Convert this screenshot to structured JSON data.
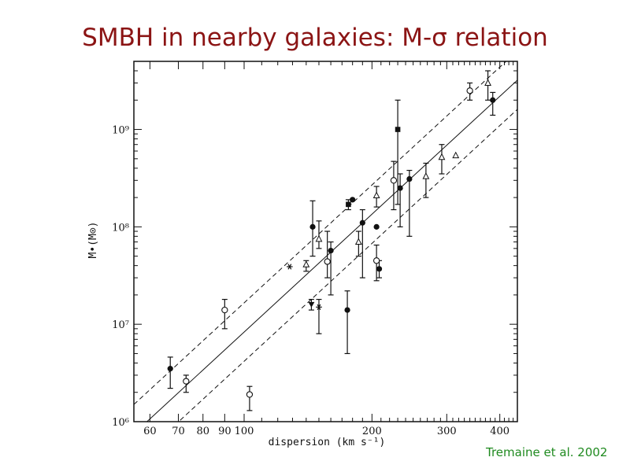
{
  "slide": {
    "title": "SMBH  in nearby galaxies: M-σ relation",
    "citation": "Tremaine et al. 2002"
  },
  "chart_data": {
    "type": "scatter",
    "x_scale": "log",
    "y_scale": "log",
    "xlabel": "dispersion (km s⁻¹)",
    "ylabel": "M•(M⊙)",
    "xlim": [
      55,
      440
    ],
    "ylim": [
      1000000,
      5000000000
    ],
    "x_ticks": [
      60,
      70,
      80,
      90,
      100,
      200,
      300,
      400
    ],
    "x_tick_labels": [
      "60",
      "70",
      "80",
      "90",
      "100",
      "200",
      "300",
      "400"
    ],
    "y_ticks": [
      1000000,
      10000000,
      100000000,
      1000000000
    ],
    "y_tick_labels": [
      "10⁶",
      "10⁷",
      "10⁸",
      "10⁹"
    ],
    "fit": {
      "slope": 4.02,
      "log_norm_at_200": 8.13
    },
    "confidence_offset_dex": 0.3,
    "grid": false,
    "legend": "none",
    "series": [
      {
        "marker": "filled-circle",
        "points": [
          {
            "x": 67,
            "y": 3500000,
            "y_lo": 2200000,
            "y_hi": 4600000
          },
          {
            "x": 145,
            "y": 100000000,
            "y_lo": 50000000,
            "y_hi": 185000000
          },
          {
            "x": 160,
            "y": 57000000,
            "y_lo": 20000000,
            "y_hi": 70000000
          },
          {
            "x": 175,
            "y": 14000000,
            "y_lo": 5000000,
            "y_hi": 22000000
          },
          {
            "x": 180,
            "y": 190000000
          },
          {
            "x": 190,
            "y": 110000000,
            "y_lo": 30000000,
            "y_hi": 150000000
          },
          {
            "x": 205,
            "y": 100000000
          },
          {
            "x": 208,
            "y": 37000000,
            "y_lo": 30000000,
            "y_hi": 45000000
          },
          {
            "x": 233,
            "y": 250000000,
            "y_lo": 100000000,
            "y_hi": 350000000
          },
          {
            "x": 245,
            "y": 310000000,
            "y_lo": 80000000,
            "y_hi": 380000000
          },
          {
            "x": 385,
            "y": 2000000000,
            "y_lo": 1400000000,
            "y_hi": 2400000000
          }
        ]
      },
      {
        "marker": "filled-square",
        "points": [
          {
            "x": 176,
            "y": 170000000,
            "y_lo": 150000000,
            "y_hi": 190000000
          },
          {
            "x": 230,
            "y": 1000000000,
            "y_lo": 170000000,
            "y_hi": 2000000000
          }
        ]
      },
      {
        "marker": "filled-triangle-down",
        "points": [
          {
            "x": 144,
            "y": 16000000,
            "y_lo": 14000000,
            "y_hi": 18000000
          }
        ]
      },
      {
        "marker": "open-circle",
        "points": [
          {
            "x": 73,
            "y": 2600000,
            "y_lo": 2000000,
            "y_hi": 3000000
          },
          {
            "x": 90,
            "y": 14000000,
            "y_lo": 9000000,
            "y_hi": 18000000
          },
          {
            "x": 103,
            "y": 1900000,
            "y_lo": 1300000,
            "y_hi": 2300000
          },
          {
            "x": 157,
            "y": 44000000,
            "y_lo": 30000000,
            "y_hi": 90000000
          },
          {
            "x": 205,
            "y": 45000000,
            "y_lo": 28000000,
            "y_hi": 65000000
          },
          {
            "x": 225,
            "y": 300000000,
            "y_lo": 150000000,
            "y_hi": 470000000
          },
          {
            "x": 340,
            "y": 2500000000,
            "y_lo": 2000000000,
            "y_hi": 3000000000
          }
        ]
      },
      {
        "marker": "open-triangle",
        "points": [
          {
            "x": 140,
            "y": 41000000,
            "y_lo": 35000000,
            "y_hi": 45000000
          },
          {
            "x": 150,
            "y": 75000000,
            "y_lo": 60000000,
            "y_hi": 115000000
          },
          {
            "x": 186,
            "y": 70000000,
            "y_lo": 50000000,
            "y_hi": 90000000
          },
          {
            "x": 205,
            "y": 210000000,
            "y_lo": 160000000,
            "y_hi": 260000000
          },
          {
            "x": 268,
            "y": 330000000,
            "y_lo": 200000000,
            "y_hi": 450000000
          },
          {
            "x": 292,
            "y": 520000000,
            "y_lo": 350000000,
            "y_hi": 700000000
          },
          {
            "x": 315,
            "y": 540000000
          },
          {
            "x": 375,
            "y": 3000000000,
            "y_lo": 2000000000,
            "y_hi": 4000000000
          }
        ]
      },
      {
        "marker": "asterisk",
        "points": [
          {
            "x": 128,
            "y": 39000000
          },
          {
            "x": 150,
            "y": 15000000,
            "y_lo": 8000000,
            "y_hi": 18000000
          }
        ]
      }
    ]
  }
}
